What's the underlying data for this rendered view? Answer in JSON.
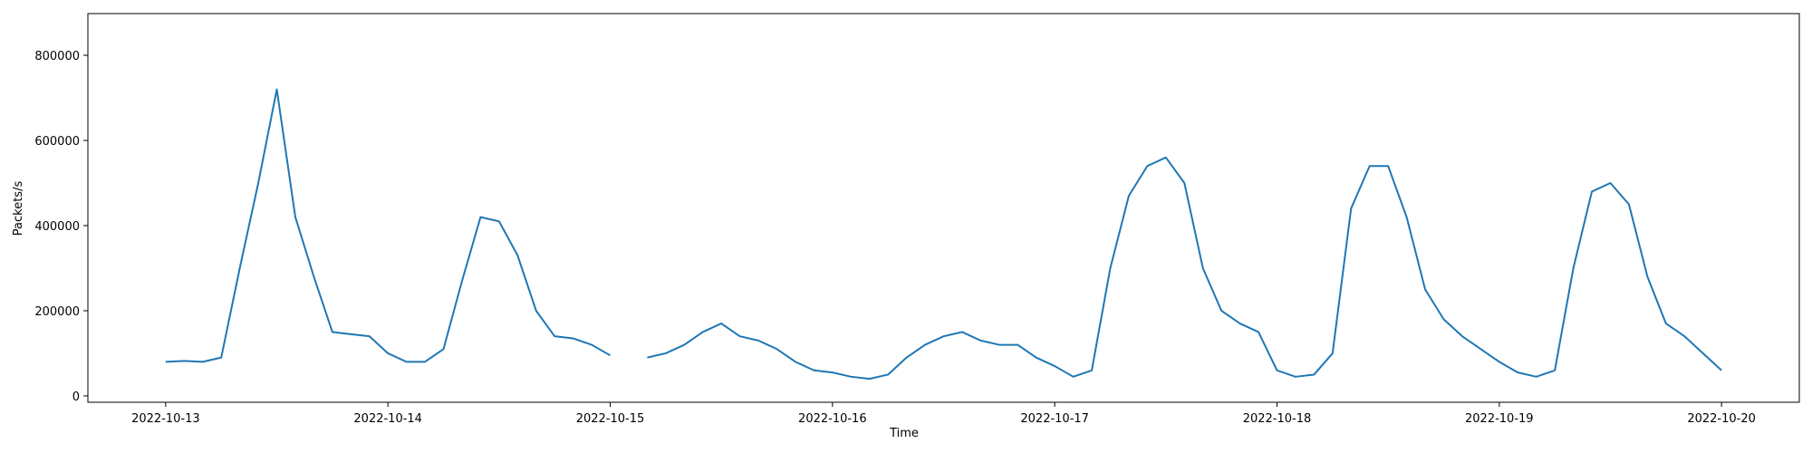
{
  "chart_data": {
    "type": "line",
    "x_label": "Time",
    "y_label": "Packets/s",
    "x": [
      "2022-10-13 00:00",
      "2022-10-13 02:00",
      "2022-10-13 04:00",
      "2022-10-13 06:00",
      "2022-10-13 08:00",
      "2022-10-13 10:00",
      "2022-10-13 12:00",
      "2022-10-13 14:00",
      "2022-10-13 16:00",
      "2022-10-13 18:00",
      "2022-10-13 20:00",
      "2022-10-13 22:00",
      "2022-10-14 00:00",
      "2022-10-14 02:00",
      "2022-10-14 04:00",
      "2022-10-14 06:00",
      "2022-10-14 08:00",
      "2022-10-14 10:00",
      "2022-10-14 12:00",
      "2022-10-14 14:00",
      "2022-10-14 16:00",
      "2022-10-14 18:00",
      "2022-10-14 20:00",
      "2022-10-14 22:00",
      "2022-10-15 00:00",
      "2022-10-15 02:00",
      "2022-10-15 04:00",
      "2022-10-15 06:00",
      "2022-10-15 08:00",
      "2022-10-15 10:00",
      "2022-10-15 12:00",
      "2022-10-15 14:00",
      "2022-10-15 16:00",
      "2022-10-15 18:00",
      "2022-10-15 20:00",
      "2022-10-15 22:00",
      "2022-10-16 00:00",
      "2022-10-16 02:00",
      "2022-10-16 04:00",
      "2022-10-16 06:00",
      "2022-10-16 08:00",
      "2022-10-16 10:00",
      "2022-10-16 12:00",
      "2022-10-16 14:00",
      "2022-10-16 16:00",
      "2022-10-16 18:00",
      "2022-10-16 20:00",
      "2022-10-16 22:00",
      "2022-10-17 00:00",
      "2022-10-17 02:00",
      "2022-10-17 04:00",
      "2022-10-17 06:00",
      "2022-10-17 08:00",
      "2022-10-17 10:00",
      "2022-10-17 12:00",
      "2022-10-17 14:00",
      "2022-10-17 16:00",
      "2022-10-17 18:00",
      "2022-10-17 20:00",
      "2022-10-17 22:00",
      "2022-10-18 00:00",
      "2022-10-18 02:00",
      "2022-10-18 04:00",
      "2022-10-18 06:00",
      "2022-10-18 08:00",
      "2022-10-18 10:00",
      "2022-10-18 12:00",
      "2022-10-18 14:00",
      "2022-10-18 16:00",
      "2022-10-18 18:00",
      "2022-10-18 20:00",
      "2022-10-18 22:00",
      "2022-10-19 00:00",
      "2022-10-19 02:00",
      "2022-10-19 04:00",
      "2022-10-19 06:00",
      "2022-10-19 08:00",
      "2022-10-19 10:00",
      "2022-10-19 12:00",
      "2022-10-19 14:00",
      "2022-10-19 16:00",
      "2022-10-19 18:00",
      "2022-10-19 20:00",
      "2022-10-19 22:00",
      "2022-10-20 00:00"
    ],
    "values": [
      80000,
      82000,
      80000,
      90000,
      300000,
      500000,
      720000,
      420000,
      280000,
      150000,
      145000,
      140000,
      100000,
      80000,
      80000,
      110000,
      270000,
      420000,
      410000,
      330000,
      200000,
      140000,
      135000,
      120000,
      95000,
      null,
      90000,
      100000,
      120000,
      150000,
      170000,
      140000,
      130000,
      110000,
      80000,
      60000,
      55000,
      45000,
      40000,
      50000,
      90000,
      120000,
      140000,
      150000,
      130000,
      120000,
      120000,
      90000,
      70000,
      45000,
      60000,
      300000,
      470000,
      540000,
      560000,
      500000,
      300000,
      200000,
      170000,
      150000,
      60000,
      45000,
      50000,
      100000,
      440000,
      540000,
      540000,
      420000,
      250000,
      180000,
      140000,
      110000,
      80000,
      55000,
      45000,
      60000,
      300000,
      480000,
      500000,
      450000,
      280000,
      170000,
      140000,
      100000,
      60000
    ],
    "color": "#1f77b4",
    "xlim": [
      "2022-10-12 15:36",
      "2022-10-20 08:24"
    ],
    "xticks": [
      "2022-10-13",
      "2022-10-14",
      "2022-10-15",
      "2022-10-16",
      "2022-10-17",
      "2022-10-18",
      "2022-10-19",
      "2022-10-20"
    ],
    "ylim": [
      -15000,
      898000
    ],
    "yticks": [
      0,
      200000,
      400000,
      600000,
      800000
    ]
  }
}
